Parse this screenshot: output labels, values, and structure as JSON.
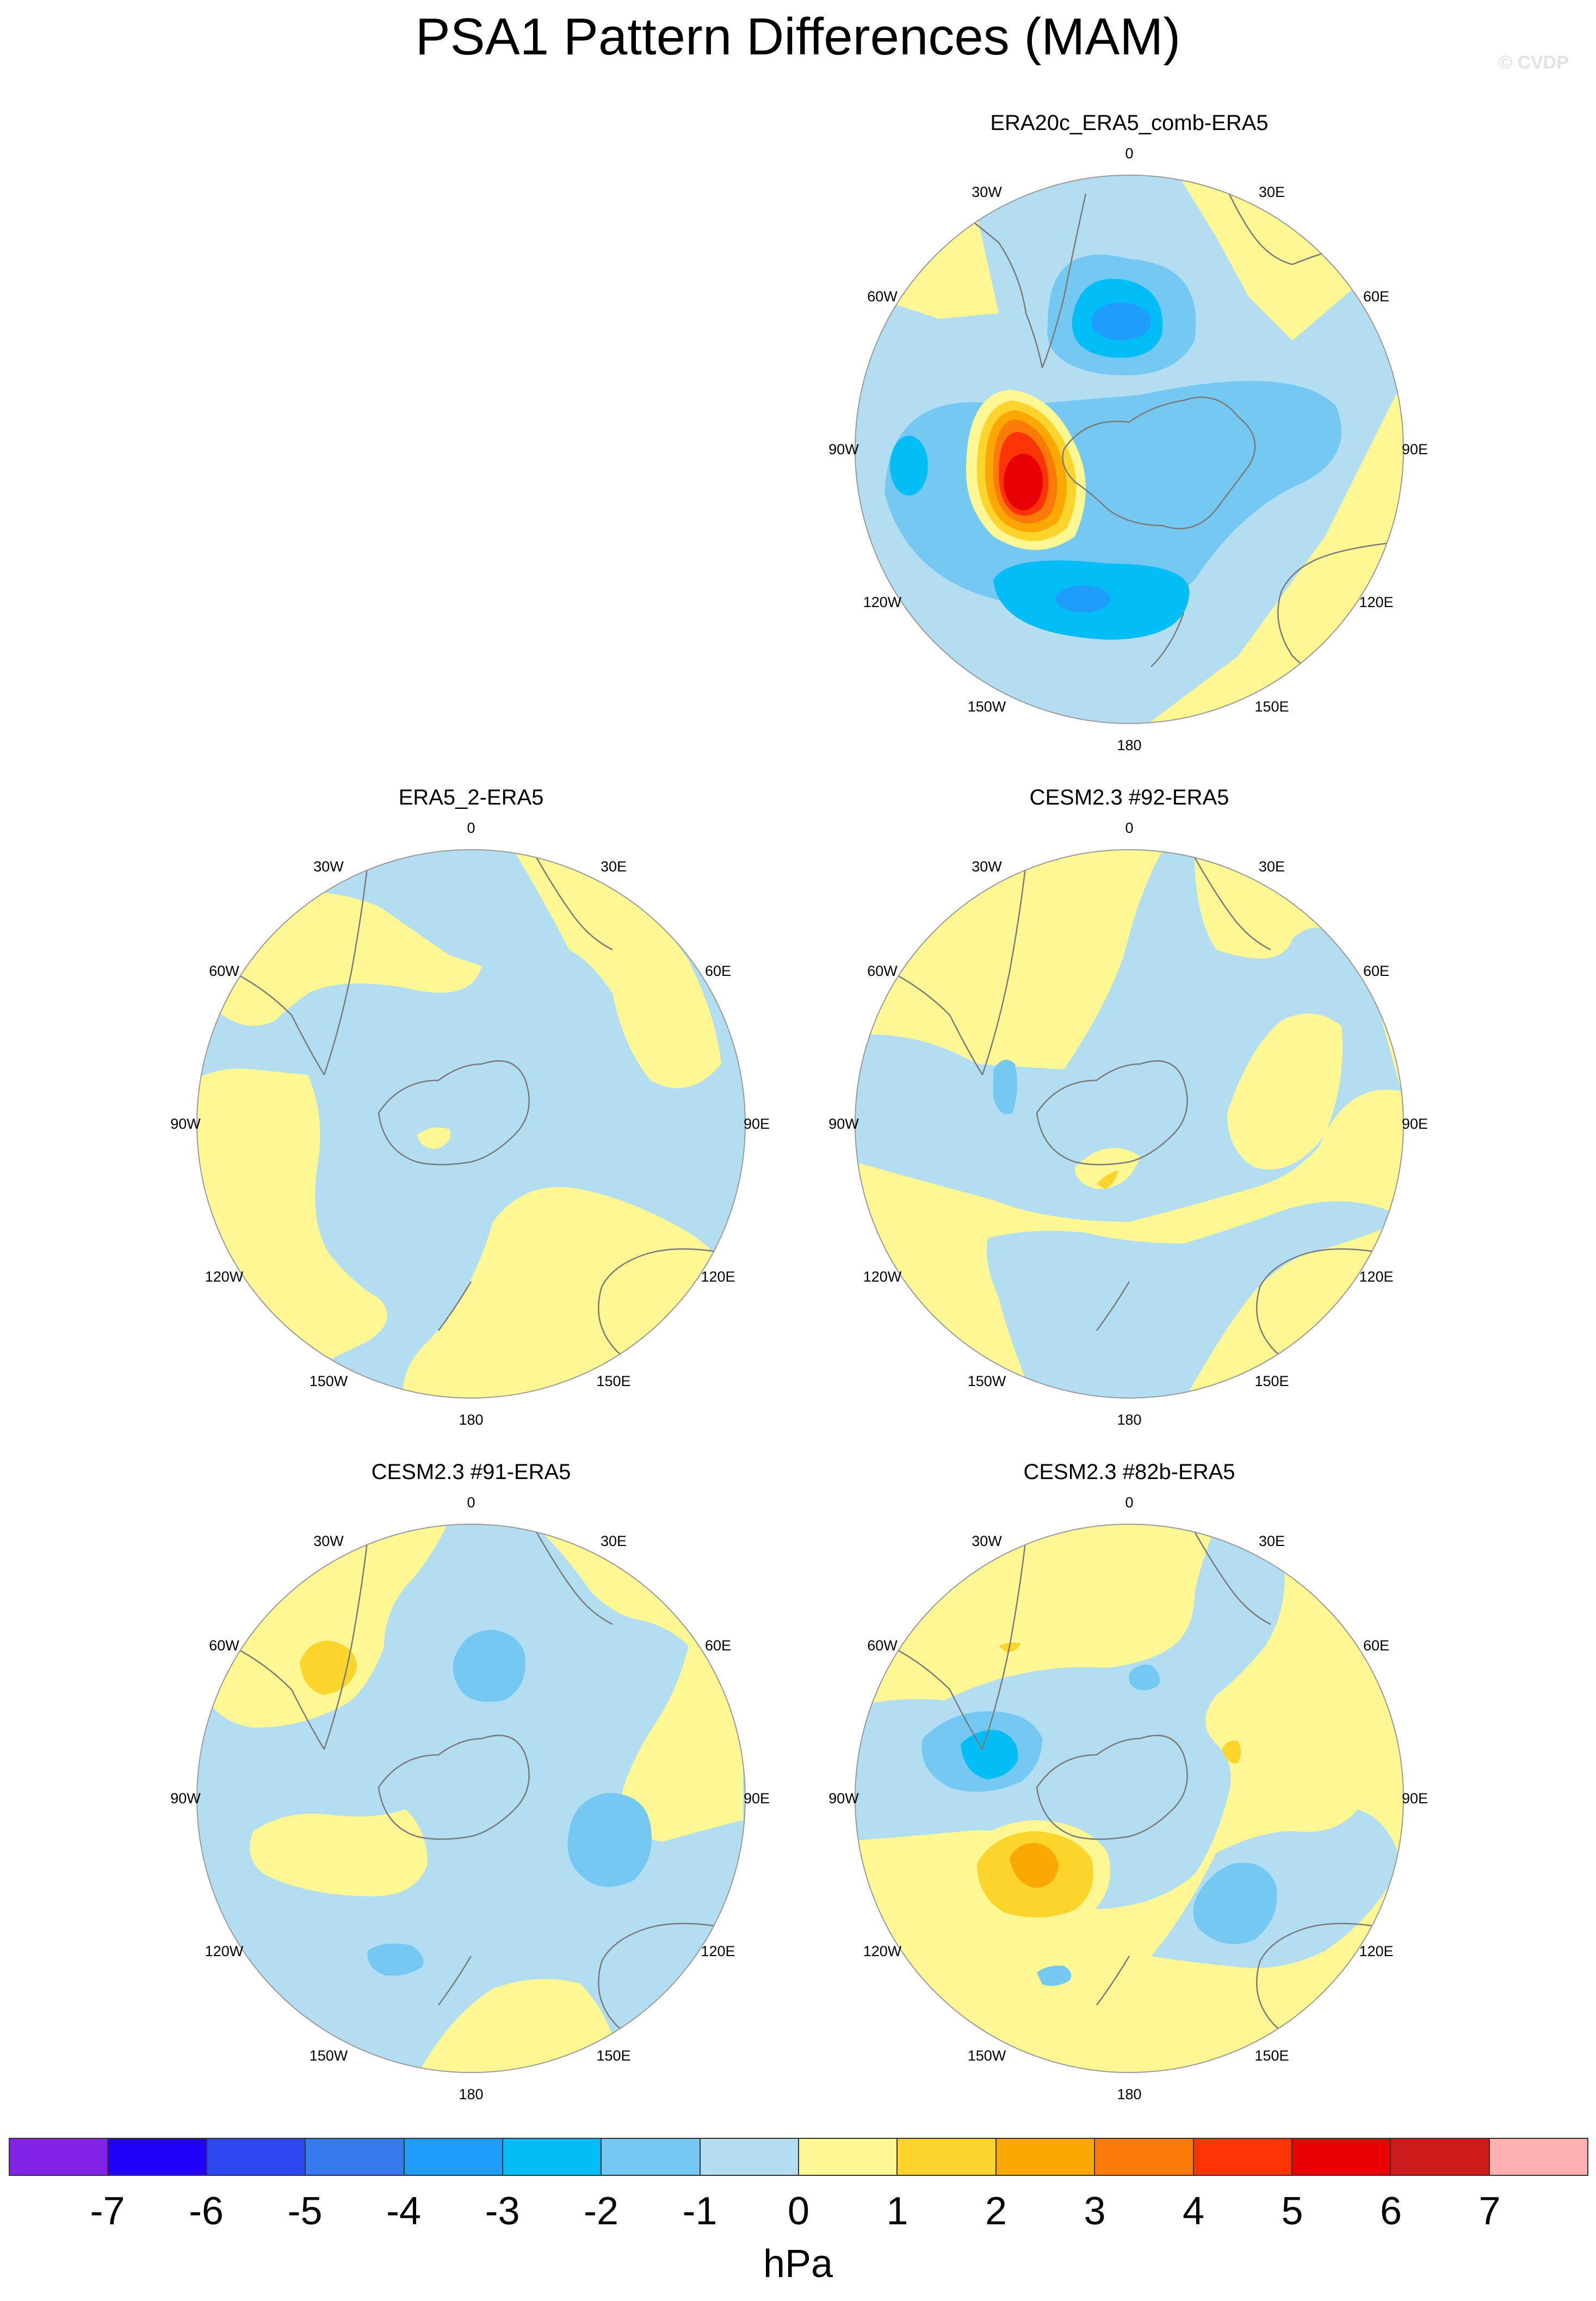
{
  "title": "PSA1 Pattern Differences (MAM)",
  "watermark": "© CVDP",
  "lon_labels": [
    "0",
    "30E",
    "60E",
    "90E",
    "120E",
    "150E",
    "180",
    "150W",
    "120W",
    "90W",
    "60W",
    "30W"
  ],
  "colors": {
    "land_outline": "#7a7a7a",
    "circle_outline": "#9a9a9a",
    "neg_minus1": "#b3def2",
    "neg_minus2": "#75c8f2",
    "neg_minus3": "#03bdf7",
    "neg_minus4": "#1f9dfb",
    "pos_plus1": "#fff694",
    "pos_plus2": "#fdd42c",
    "pos_plus3": "#fba704",
    "pos_plus4": "#fc7a07",
    "pos_plus5": "#fd3406",
    "pos_plus6": "#e90004"
  },
  "panels": [
    {
      "title": "ERA20c_ERA5_comb-ERA5"
    },
    {
      "title": "ERA5_2-ERA5"
    },
    {
      "title": "CESM2.3 #92-ERA5"
    },
    {
      "title": "CESM2.3 #91-ERA5"
    },
    {
      "title": "CESM2.3 #82b-ERA5"
    }
  ],
  "colorbar": {
    "units": "hPa",
    "colors": [
      "#8423e8",
      "#2201fa",
      "#2c47f2",
      "#3579ed",
      "#1f9dfb",
      "#03bdf7",
      "#75c8f2",
      "#b3def2",
      "#fff694",
      "#fdd42c",
      "#fba704",
      "#fc7a07",
      "#fd3406",
      "#e90004",
      "#cd1b1c",
      "#ffb1b1"
    ],
    "tick_labels": [
      "-7",
      "-6",
      "-5",
      "-4",
      "-3",
      "-2",
      "-1",
      "0",
      "1",
      "2",
      "3",
      "4",
      "5",
      "6",
      "7"
    ]
  }
}
